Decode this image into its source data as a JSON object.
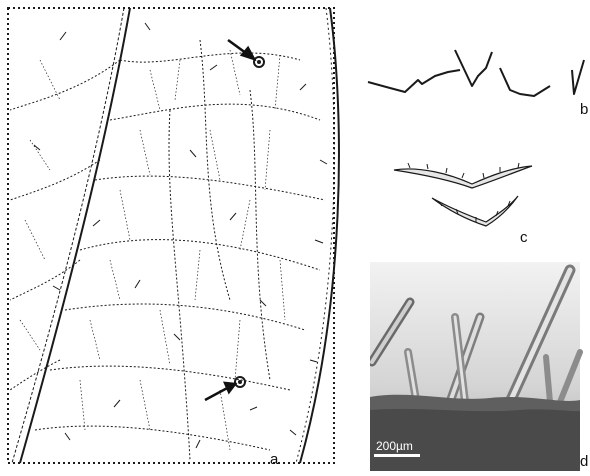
{
  "figure": {
    "panels": [
      {
        "id": "a",
        "label": "a"
      },
      {
        "id": "b",
        "label": "b"
      },
      {
        "id": "c",
        "label": "c"
      },
      {
        "id": "d",
        "label": "d",
        "scale_bar": "200µm"
      }
    ],
    "colors": {
      "ink": "#1a1a1a",
      "photo_bg": "#d9d9d9",
      "photo_dark": "#5f5f5f",
      "hair": "#8c8c8c"
    }
  }
}
